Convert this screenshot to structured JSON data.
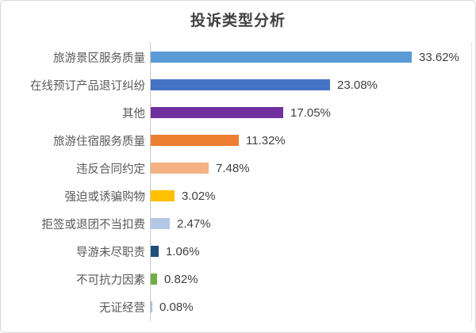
{
  "title": "投诉类型分析",
  "chart_data": {
    "type": "bar",
    "orientation": "horizontal",
    "title": "投诉类型分析",
    "categories": [
      "旅游景区服务质量",
      "在线预订产品退订纠纷",
      "其他",
      "旅游住宿服务质量",
      "违反合同约定",
      "强迫或诱骗购物",
      "拒签或退团不当扣费",
      "导游未尽职责",
      "不可抗力因素",
      "无证经营"
    ],
    "values": [
      33.62,
      23.08,
      17.05,
      11.32,
      7.48,
      3.02,
      2.47,
      1.06,
      0.82,
      0.08
    ],
    "data_labels": [
      "33.62%",
      "23.08%",
      "17.05%",
      "11.32%",
      "7.48%",
      "3.02%",
      "2.47%",
      "1.06%",
      "0.82%",
      "0.08%"
    ],
    "bar_colors": [
      "#5B9BD5",
      "#4472C4",
      "#7030A0",
      "#ED7D31",
      "#F4B183",
      "#FFC000",
      "#B4C7E7",
      "#1F4E79",
      "#70AD47",
      "#9DC3E6"
    ],
    "xlabel": "",
    "ylabel": "",
    "xlim": [
      0,
      41
    ],
    "grid": false,
    "legend": false,
    "value_labels_shown": true
  },
  "styles": {
    "title_color": "#404040",
    "category_label_color": "#595959",
    "value_label_color": "#404040",
    "axis_line_color": "#C9C9C9",
    "border_color": "#D9D9D9",
    "background_color": "#FFFFFF"
  }
}
